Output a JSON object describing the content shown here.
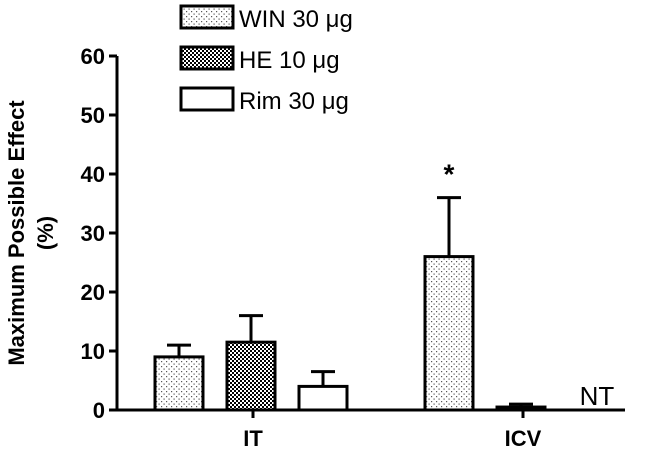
{
  "chart_data": {
    "type": "bar",
    "ylabel_line1": "Maximum Possible Effect",
    "ylabel_line2": "(%)",
    "ylim": [
      0,
      60
    ],
    "yticks": [
      "0",
      "10",
      "20",
      "30",
      "40",
      "50",
      "60"
    ],
    "grid": false,
    "legend_position": "top",
    "groups": [
      "IT",
      "ICV"
    ],
    "series": [
      {
        "name": "WIN 30 μg",
        "pattern": "dots",
        "values": [
          9,
          26
        ],
        "errors": [
          2,
          10
        ]
      },
      {
        "name": "HE 10 μg",
        "pattern": "checker",
        "values": [
          11.5,
          0.5
        ],
        "errors": [
          4.5,
          0.5
        ]
      },
      {
        "name": "Rim 30 μg",
        "pattern": "none",
        "values": [
          4,
          null
        ],
        "errors": [
          2.5,
          null
        ]
      }
    ],
    "annotations": [
      {
        "text": "*",
        "group": 1,
        "series": 0
      },
      {
        "text": "NT",
        "group": 1,
        "series": 2
      }
    ]
  }
}
